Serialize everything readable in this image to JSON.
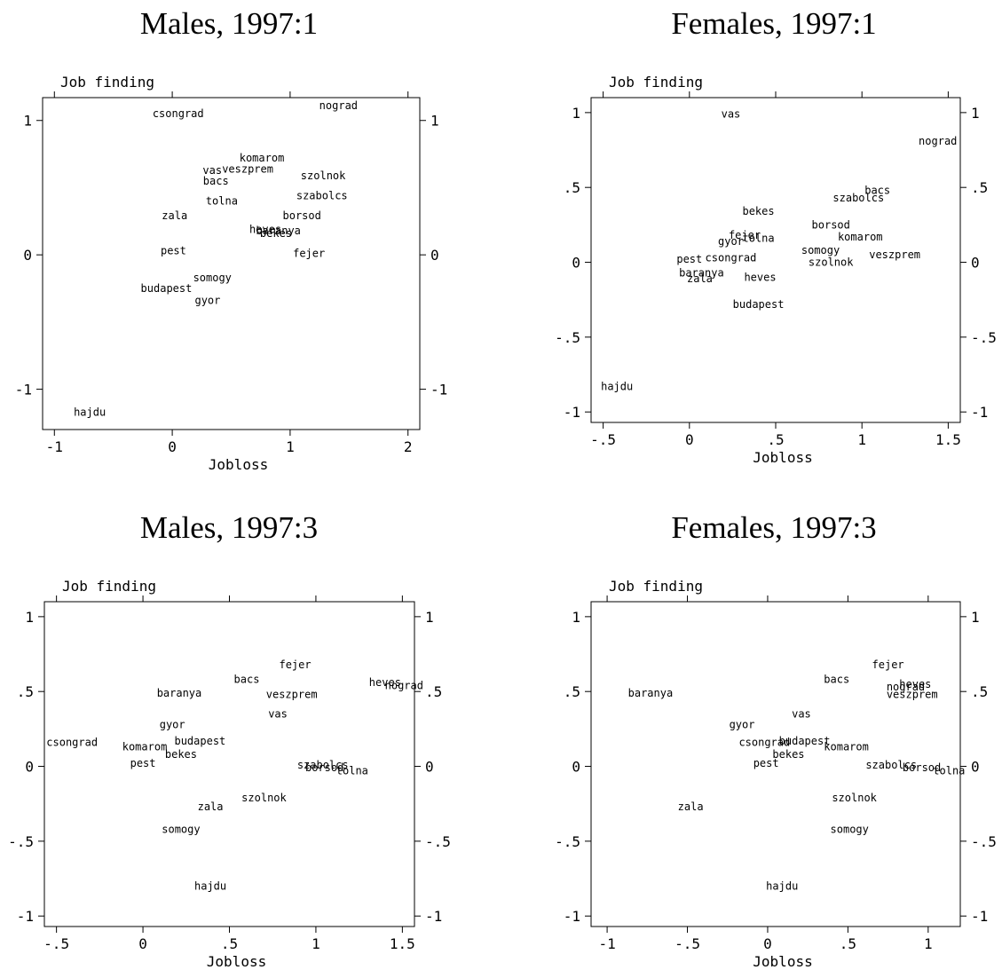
{
  "chart_data": [
    {
      "type": "scatter",
      "title": "Males, 1997:1",
      "xlabel": "Jobloss",
      "ylabel": "Job finding",
      "xlim": [
        -1.1,
        2.1
      ],
      "ylim": [
        -1.3,
        1.17
      ],
      "xticks": [
        -1,
        0,
        1,
        2
      ],
      "xtick_labels": [
        "-1",
        "0",
        "1",
        "2"
      ],
      "yticks": [
        -1,
        0,
        1
      ],
      "ytick_labels": [
        "-1",
        "0",
        "1"
      ],
      "grid": false,
      "points": [
        {
          "label": "csongrad",
          "x": 0.05,
          "y": 1.05
        },
        {
          "label": "nograd",
          "x": 1.41,
          "y": 1.11
        },
        {
          "label": "komarom",
          "x": 0.76,
          "y": 0.72
        },
        {
          "label": "vas",
          "x": 0.34,
          "y": 0.63
        },
        {
          "label": "veszprem",
          "x": 0.64,
          "y": 0.64
        },
        {
          "label": "szolnok",
          "x": 1.28,
          "y": 0.59
        },
        {
          "label": "bacs",
          "x": 0.37,
          "y": 0.55
        },
        {
          "label": "szabolcs",
          "x": 1.27,
          "y": 0.44
        },
        {
          "label": "tolna",
          "x": 0.42,
          "y": 0.4
        },
        {
          "label": "zala",
          "x": 0.02,
          "y": 0.29
        },
        {
          "label": "borsod",
          "x": 1.1,
          "y": 0.29
        },
        {
          "label": "heves",
          "x": 0.79,
          "y": 0.19
        },
        {
          "label": "baranya",
          "x": 0.9,
          "y": 0.18
        },
        {
          "label": "bekes",
          "x": 0.88,
          "y": 0.16
        },
        {
          "label": "pest",
          "x": 0.01,
          "y": 0.03
        },
        {
          "label": "fejer",
          "x": 1.16,
          "y": 0.01
        },
        {
          "label": "somogy",
          "x": 0.34,
          "y": -0.17
        },
        {
          "label": "budapest",
          "x": -0.05,
          "y": -0.25
        },
        {
          "label": "gyor",
          "x": 0.3,
          "y": -0.34
        },
        {
          "label": "hajdu",
          "x": -0.7,
          "y": -1.17
        }
      ]
    },
    {
      "type": "scatter",
      "title": "Females, 1997:1",
      "xlabel": "Jobloss",
      "ylabel": "Job finding",
      "xlim": [
        -0.57,
        1.57
      ],
      "ylim": [
        -1.07,
        1.1
      ],
      "xticks": [
        -0.5,
        0,
        0.5,
        1,
        1.5
      ],
      "xtick_labels": [
        "-.5",
        "0",
        ".5",
        "1",
        "1.5"
      ],
      "yticks": [
        -1,
        -0.5,
        0,
        0.5,
        1
      ],
      "ytick_labels": [
        "-1",
        "-.5",
        "0",
        ".5",
        "1"
      ],
      "grid": false,
      "points": [
        {
          "label": "vas",
          "x": 0.24,
          "y": 0.99
        },
        {
          "label": "nograd",
          "x": 1.44,
          "y": 0.81
        },
        {
          "label": "bacs",
          "x": 1.09,
          "y": 0.48
        },
        {
          "label": "szabolcs",
          "x": 0.98,
          "y": 0.43
        },
        {
          "label": "bekes",
          "x": 0.4,
          "y": 0.34
        },
        {
          "label": "borsod",
          "x": 0.82,
          "y": 0.25
        },
        {
          "label": "fejer",
          "x": 0.32,
          "y": 0.18
        },
        {
          "label": "gyor",
          "x": 0.24,
          "y": 0.14
        },
        {
          "label": "tolna",
          "x": 0.4,
          "y": 0.16
        },
        {
          "label": "komarom",
          "x": 0.99,
          "y": 0.17
        },
        {
          "label": "somogy",
          "x": 0.76,
          "y": 0.08
        },
        {
          "label": "veszprem",
          "x": 1.19,
          "y": 0.05
        },
        {
          "label": "pest",
          "x": 0.0,
          "y": 0.02
        },
        {
          "label": "csongrad",
          "x": 0.24,
          "y": 0.03
        },
        {
          "label": "szolnok",
          "x": 0.82,
          "y": 0.0
        },
        {
          "label": "baranya",
          "x": 0.07,
          "y": -0.07
        },
        {
          "label": "zala",
          "x": 0.06,
          "y": -0.11
        },
        {
          "label": "heves",
          "x": 0.41,
          "y": -0.1
        },
        {
          "label": "budapest",
          "x": 0.4,
          "y": -0.28
        },
        {
          "label": "hajdu",
          "x": -0.42,
          "y": -0.83
        }
      ]
    },
    {
      "type": "scatter",
      "title": "Males, 1997:3",
      "xlabel": "Jobloss",
      "ylabel": "Job finding",
      "xlim": [
        -0.57,
        1.57
      ],
      "ylim": [
        -1.07,
        1.1
      ],
      "xticks": [
        -0.5,
        0,
        0.5,
        1,
        1.5
      ],
      "xtick_labels": [
        "-.5",
        "0",
        ".5",
        "1",
        "1.5"
      ],
      "yticks": [
        -1,
        -0.5,
        0,
        0.5,
        1
      ],
      "ytick_labels": [
        "-1",
        "-.5",
        "0",
        ".5",
        "1"
      ],
      "grid": false,
      "points": [
        {
          "label": "fejer",
          "x": 0.88,
          "y": 0.68
        },
        {
          "label": "bacs",
          "x": 0.6,
          "y": 0.58
        },
        {
          "label": "heves",
          "x": 1.4,
          "y": 0.56
        },
        {
          "label": "nograd",
          "x": 1.51,
          "y": 0.54
        },
        {
          "label": "baranya",
          "x": 0.21,
          "y": 0.49
        },
        {
          "label": "veszprem",
          "x": 0.86,
          "y": 0.48
        },
        {
          "label": "vas",
          "x": 0.78,
          "y": 0.35
        },
        {
          "label": "gyor",
          "x": 0.17,
          "y": 0.28
        },
        {
          "label": "csongrad",
          "x": -0.41,
          "y": 0.16
        },
        {
          "label": "budapest",
          "x": 0.33,
          "y": 0.17
        },
        {
          "label": "komarom",
          "x": 0.01,
          "y": 0.13
        },
        {
          "label": "bekes",
          "x": 0.22,
          "y": 0.08
        },
        {
          "label": "pest",
          "x": 0.0,
          "y": 0.02
        },
        {
          "label": "szabolcs",
          "x": 1.04,
          "y": 0.01
        },
        {
          "label": "borsod",
          "x": 1.05,
          "y": -0.01
        },
        {
          "label": "tolna",
          "x": 1.21,
          "y": -0.03
        },
        {
          "label": "szolnok",
          "x": 0.7,
          "y": -0.21
        },
        {
          "label": "zala",
          "x": 0.39,
          "y": -0.27
        },
        {
          "label": "somogy",
          "x": 0.22,
          "y": -0.42
        },
        {
          "label": "hajdu",
          "x": 0.39,
          "y": -0.8
        }
      ]
    },
    {
      "type": "scatter",
      "title": "Females, 1997:3",
      "xlabel": "Jobloss",
      "ylabel": "Job finding",
      "xlim": [
        -1.1,
        1.2
      ],
      "ylim": [
        -1.07,
        1.1
      ],
      "xticks": [
        -1,
        -0.5,
        0,
        0.5,
        1
      ],
      "xtick_labels": [
        "-1",
        "-.5",
        "0",
        ".5",
        "1"
      ],
      "yticks": [
        -1,
        -0.5,
        0,
        0.5,
        1
      ],
      "ytick_labels": [
        "-1",
        "-.5",
        "0",
        ".5",
        "1"
      ],
      "grid": false,
      "points": [
        {
          "label": "fejer",
          "x": 0.75,
          "y": 0.68
        },
        {
          "label": "heves",
          "x": 0.92,
          "y": 0.55
        },
        {
          "label": "nograd",
          "x": 0.86,
          "y": 0.53
        },
        {
          "label": "veszprem",
          "x": 0.9,
          "y": 0.48
        },
        {
          "label": "bacs",
          "x": 0.43,
          "y": 0.58
        },
        {
          "label": "baranya",
          "x": -0.73,
          "y": 0.49
        },
        {
          "label": "vas",
          "x": 0.21,
          "y": 0.35
        },
        {
          "label": "gyor",
          "x": -0.16,
          "y": 0.28
        },
        {
          "label": "csongrad",
          "x": -0.02,
          "y": 0.16
        },
        {
          "label": "budapest",
          "x": 0.23,
          "y": 0.17
        },
        {
          "label": "komarom",
          "x": 0.49,
          "y": 0.13
        },
        {
          "label": "bekes",
          "x": 0.13,
          "y": 0.08
        },
        {
          "label": "pest",
          "x": -0.01,
          "y": 0.02
        },
        {
          "label": "szabolcs",
          "x": 0.77,
          "y": 0.01
        },
        {
          "label": "borsod",
          "x": 0.96,
          "y": -0.01
        },
        {
          "label": "tolna",
          "x": 1.13,
          "y": -0.03
        },
        {
          "label": "szolnok",
          "x": 0.54,
          "y": -0.21
        },
        {
          "label": "zala",
          "x": -0.48,
          "y": -0.27
        },
        {
          "label": "somogy",
          "x": 0.51,
          "y": -0.42
        },
        {
          "label": "hajdu",
          "x": 0.09,
          "y": -0.8
        }
      ]
    }
  ]
}
